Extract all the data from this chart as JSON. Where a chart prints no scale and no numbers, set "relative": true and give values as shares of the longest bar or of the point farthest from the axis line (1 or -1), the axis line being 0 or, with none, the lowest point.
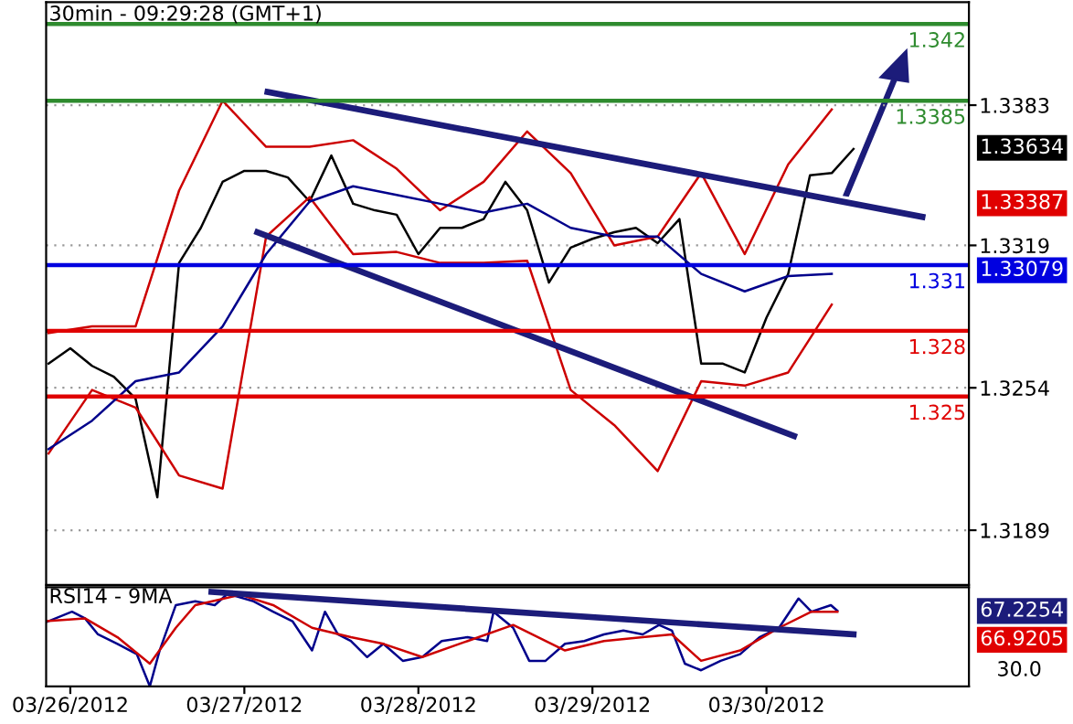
{
  "chart_data": [
    {
      "type": "line",
      "title": "30min - 09:29:28 (GMT+1)",
      "tick_labels": "y",
      "grid": "y",
      "legend": false,
      "marker": "none",
      "line_style": "solid",
      "x": [
        "2012-03-25T21:00",
        "2012-03-26T00:00",
        "2012-03-26T03:00",
        "2012-03-26T06:00",
        "2012-03-26T09:00",
        "2012-03-26T12:00",
        "2012-03-26T15:00",
        "2012-03-26T18:00",
        "2012-03-26T21:00",
        "2012-03-27T00:00",
        "2012-03-27T03:00",
        "2012-03-27T06:00",
        "2012-03-27T09:00",
        "2012-03-27T12:00",
        "2012-03-27T15:00",
        "2012-03-27T18:00",
        "2012-03-27T21:00",
        "2012-03-28T00:00",
        "2012-03-28T03:00",
        "2012-03-28T06:00",
        "2012-03-28T09:00",
        "2012-03-28T12:00",
        "2012-03-28T15:00",
        "2012-03-28T18:00",
        "2012-03-28T21:00",
        "2012-03-29T00:00",
        "2012-03-29T03:00",
        "2012-03-29T06:00",
        "2012-03-29T09:00",
        "2012-03-29T12:00",
        "2012-03-29T15:00",
        "2012-03-29T18:00",
        "2012-03-29T21:00",
        "2012-03-30T00:00",
        "2012-03-30T03:00",
        "2012-03-30T06:00",
        "2012-03-30T09:00",
        "2012-03-30T12:00"
      ],
      "series": [
        {
          "color": "#000000",
          "values": [
            1.3265,
            1.3272,
            1.3264,
            1.3259,
            1.3249,
            1.3204,
            1.3311,
            1.3327,
            1.3348,
            1.3353,
            1.3353,
            1.335,
            1.3339,
            1.336,
            1.3338,
            1.3335,
            1.3333,
            1.3315,
            1.3327,
            1.3327,
            1.3331,
            1.3348,
            1.3335,
            1.3302,
            1.3318,
            1.3322,
            1.3325,
            1.3327,
            1.332,
            1.3331,
            1.3265,
            1.3265,
            1.3261,
            1.3286,
            1.3306,
            1.3351,
            1.3352,
            1.3363
          ]
        },
        {
          "color": "#cc0000",
          "x": [
            "2012-03-25T21:00",
            "2012-03-26T03:00",
            "2012-03-26T09:00",
            "2012-03-26T15:00",
            "2012-03-26T21:00",
            "2012-03-27T03:00",
            "2012-03-27T09:00",
            "2012-03-27T15:00",
            "2012-03-27T21:00",
            "2012-03-28T03:00",
            "2012-03-28T09:00",
            "2012-03-28T15:00",
            "2012-03-28T21:00",
            "2012-03-29T03:00",
            "2012-03-29T09:00",
            "2012-03-29T15:00",
            "2012-03-29T21:00",
            "2012-03-30T03:00",
            "2012-03-30T09:00"
          ],
          "values": [
            1.3279,
            1.3282,
            1.3282,
            1.3344,
            1.3385,
            1.3364,
            1.3364,
            1.3367,
            1.3354,
            1.3335,
            1.3348,
            1.3371,
            1.3352,
            1.3319,
            1.3323,
            1.3352,
            1.3315,
            1.3356,
            1.3381
          ]
        },
        {
          "color": "#cc0000",
          "x": [
            "2012-03-25T21:00",
            "2012-03-26T03:00",
            "2012-03-26T09:00",
            "2012-03-26T15:00",
            "2012-03-26T21:00",
            "2012-03-27T03:00",
            "2012-03-27T09:00",
            "2012-03-27T15:00",
            "2012-03-27T21:00",
            "2012-03-28T03:00",
            "2012-03-28T09:00",
            "2012-03-28T15:00",
            "2012-03-28T21:00",
            "2012-03-29T03:00",
            "2012-03-29T09:00",
            "2012-03-29T15:00",
            "2012-03-29T21:00",
            "2012-03-30T03:00",
            "2012-03-30T09:00"
          ],
          "values": [
            1.3224,
            1.3253,
            1.3245,
            1.3214,
            1.3208,
            1.3323,
            1.3341,
            1.3315,
            1.3316,
            1.3311,
            1.3311,
            1.3312,
            1.3253,
            1.3237,
            1.3216,
            1.3257,
            1.3255,
            1.3261,
            1.3292
          ]
        },
        {
          "color": "#00008b",
          "x": [
            "2012-03-25T21:00",
            "2012-03-26T03:00",
            "2012-03-26T09:00",
            "2012-03-26T15:00",
            "2012-03-26T21:00",
            "2012-03-27T03:00",
            "2012-03-27T09:00",
            "2012-03-27T15:00",
            "2012-03-27T21:00",
            "2012-03-28T03:00",
            "2012-03-28T09:00",
            "2012-03-28T15:00",
            "2012-03-28T21:00",
            "2012-03-29T03:00",
            "2012-03-29T09:00",
            "2012-03-29T15:00",
            "2012-03-29T21:00",
            "2012-03-30T03:00",
            "2012-03-30T09:00"
          ],
          "values": [
            1.3226,
            1.3239,
            1.3257,
            1.3261,
            1.3282,
            1.3315,
            1.3339,
            1.3346,
            1.3342,
            1.3338,
            1.3334,
            1.3338,
            1.3327,
            1.3323,
            1.3323,
            1.3306,
            1.3298,
            1.3305,
            1.3306
          ]
        },
        {
          "color": "#1c1c7a",
          "x": [
            "2012-03-27T03:12",
            "2012-03-30T21:30"
          ],
          "values": [
            1.3389,
            1.3332
          ]
        },
        {
          "color": "#1c1c7a",
          "x": [
            "2012-03-27T01:48",
            "2012-03-30T03:48"
          ],
          "values": [
            1.3325,
            1.3232
          ]
        }
      ],
      "xlim": [
        "2012-03-25T20:40",
        "2012-03-31T03:55"
      ],
      "ylim": [
        1.3164,
        1.343
      ],
      "yticks": [
        1.3383,
        1.3319,
        1.3254,
        1.3189
      ],
      "ref_lines": [
        {
          "axis": "y",
          "value": 1.342,
          "label": "1.342",
          "color": "#2e8b2e"
        },
        {
          "axis": "y",
          "value": 1.3385,
          "label": "1.3385",
          "color": "#2e8b2e"
        },
        {
          "axis": "y",
          "value": 1.331,
          "label": "1.331",
          "color": "#0000e0"
        },
        {
          "axis": "y",
          "value": 1.328,
          "label": "1.328",
          "color": "#e00000"
        },
        {
          "axis": "y",
          "value": 1.325,
          "label": "1.325",
          "color": "#e00000"
        }
      ],
      "annotations": [
        "1.33634",
        "1.33387",
        "1.33079"
      ]
    },
    {
      "type": "line",
      "title": "RSI14 - 9MA",
      "relative": true,
      "legend": false,
      "marker": "none",
      "line_style": "solid",
      "series": [
        {
          "color": "#00008b",
          "x": [
            "2012-03-25T20:40",
            "2012-03-26T00:14",
            "2012-03-26T02:01",
            "2012-03-26T03:49",
            "2012-03-26T06:30",
            "2012-03-26T09:11",
            "2012-03-26T10:58",
            "2012-03-26T12:19",
            "2012-03-26T14:33",
            "2012-03-26T17:14",
            "2012-03-26T19:55",
            "2012-03-26T21:42",
            "2012-03-27T01:17",
            "2012-03-27T03:58",
            "2012-03-27T06:38",
            "2012-03-27T09:20",
            "2012-03-27T11:07",
            "2012-03-27T12:54",
            "2012-03-27T14:41",
            "2012-03-27T16:56",
            "2012-03-27T19:10",
            "2012-03-27T21:51",
            "2012-03-28T00:32",
            "2012-03-28T03:13",
            "2012-03-28T06:47",
            "2012-03-28T09:29",
            "2012-03-28T10:22",
            "2012-03-28T13:04",
            "2012-03-28T15:17",
            "2012-03-28T17:32",
            "2012-03-28T20:13",
            "2012-03-28T22:53",
            "2012-03-29T01:35",
            "2012-03-29T04:16",
            "2012-03-29T06:56",
            "2012-03-29T09:11",
            "2012-03-29T10:58",
            "2012-03-29T12:45",
            "2012-03-29T14:59",
            "2012-03-29T17:41",
            "2012-03-29T20:22",
            "2012-03-29T23:02",
            "2012-03-30T01:44",
            "2012-03-30T04:25",
            "2012-03-30T06:12",
            "2012-03-30T08:53",
            "2012-03-30T09:47"
          ],
          "values": [
            0.68,
            0.79,
            0.72,
            0.55,
            0.45,
            0.34,
            0,
            0.38,
            0.86,
            0.9,
            0.86,
            0.98,
            0.9,
            0.79,
            0.69,
            0.38,
            0.79,
            0.55,
            0.48,
            0.31,
            0.45,
            0.27,
            0.31,
            0.48,
            0.52,
            0.48,
            0.79,
            0.62,
            0.27,
            0.27,
            0.45,
            0.48,
            0.55,
            0.59,
            0.55,
            0.65,
            0.59,
            0.24,
            0.17,
            0.27,
            0.34,
            0.52,
            0.62,
            0.93,
            0.79,
            0.86,
            0.8
          ]
        },
        {
          "color": "#cc0000",
          "x": [
            "2012-03-25T20:40",
            "2012-03-26T02:01",
            "2012-03-26T06:30",
            "2012-03-26T10:58",
            "2012-03-26T14:33",
            "2012-03-26T17:14",
            "2012-03-26T23:29",
            "2012-03-27T03:58",
            "2012-03-27T09:20",
            "2012-03-27T14:41",
            "2012-03-27T19:10",
            "2012-03-28T00:32",
            "2012-03-28T06:47",
            "2012-03-28T13:04",
            "2012-03-28T20:13",
            "2012-03-29T01:35",
            "2012-03-29T06:56",
            "2012-03-29T10:58",
            "2012-03-29T14:59",
            "2012-03-29T20:22",
            "2012-03-30T01:44",
            "2012-03-30T06:12",
            "2012-03-30T09:47"
          ],
          "values": [
            0.69,
            0.72,
            0.52,
            0.24,
            0.62,
            0.86,
            0.97,
            0.86,
            0.62,
            0.52,
            0.45,
            0.31,
            0.48,
            0.65,
            0.38,
            0.48,
            0.52,
            0.55,
            0.27,
            0.38,
            0.62,
            0.79,
            0.79
          ]
        },
        {
          "color": "#1c1c7a",
          "x": [
            "2012-03-26T19:28",
            "2012-03-30T12:00"
          ],
          "values": [
            1,
            0.55
          ]
        }
      ],
      "xlim": [
        "2012-03-25T20:40",
        "2012-03-31T03:55"
      ],
      "xticks": [
        {
          "value": "2012-03-26",
          "label": "03/26/2012"
        },
        {
          "value": "2012-03-27",
          "label": "03/27/2012"
        },
        {
          "value": "2012-03-28",
          "label": "03/28/2012"
        },
        {
          "value": "2012-03-29",
          "label": "03/29/2012"
        },
        {
          "value": "2012-03-30",
          "label": "03/30/2012"
        }
      ],
      "tick_labels": "x",
      "annotations": [
        "67.2254",
        "66.9205",
        "30.0"
      ]
    }
  ]
}
